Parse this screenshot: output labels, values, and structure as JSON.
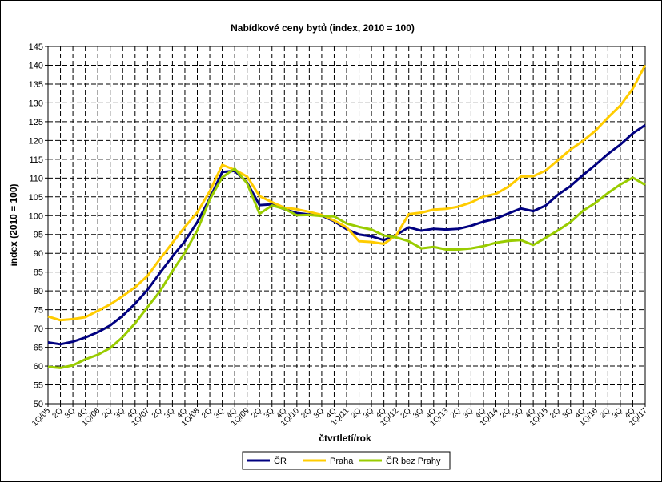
{
  "chart_data": {
    "type": "line",
    "title": "Nabídkové ceny bytů (index, 2010 = 100)",
    "xlabel": "čtvrtletí/rok",
    "ylabel": "index (2010 = 100)",
    "ylim": [
      50,
      145
    ],
    "ystep": 5,
    "grid": true,
    "legend_position": "bottom-center",
    "categories": [
      "1Q/05",
      "2Q",
      "3Q",
      "4Q",
      "1Q/06",
      "2Q",
      "3Q",
      "4Q",
      "1Q/07",
      "2Q",
      "3Q",
      "4Q",
      "1Q/08",
      "2Q",
      "3Q",
      "4Q",
      "1Q/09",
      "2Q",
      "3Q",
      "4Q",
      "1Q/10",
      "2Q",
      "3Q",
      "4Q",
      "1Q/11",
      "2Q",
      "3Q",
      "4Q",
      "1Q/12",
      "2Q",
      "3Q",
      "4Q",
      "1Q/13",
      "2Q",
      "3Q",
      "4Q",
      "1Q/14",
      "2Q",
      "3Q",
      "4Q",
      "1Q/15",
      "2Q",
      "3Q",
      "4Q",
      "1Q/16",
      "2Q",
      "3Q",
      "4Q",
      "1Q/17"
    ],
    "series": [
      {
        "name": "ČR",
        "color": "#000080",
        "values": [
          66.3,
          65.8,
          66.5,
          67.6,
          69.0,
          70.8,
          73.4,
          76.6,
          80.3,
          84.8,
          89.2,
          93.2,
          98.3,
          104.6,
          111.6,
          111.9,
          108.8,
          102.8,
          103.0,
          101.7,
          100.7,
          100.3,
          100.0,
          98.5,
          96.4,
          95.0,
          94.5,
          93.5,
          94.9,
          96.9,
          96.0,
          96.5,
          96.3,
          96.5,
          97.3,
          98.4,
          99.2,
          100.6,
          101.9,
          101.2,
          102.7,
          105.6,
          107.9,
          110.8,
          113.5,
          116.4,
          118.9,
          121.9,
          124.1
        ]
      },
      {
        "name": "Praha",
        "color": "#FFCC00",
        "values": [
          73.2,
          72.2,
          72.5,
          73.0,
          74.7,
          76.4,
          78.6,
          81.0,
          84.0,
          88.5,
          92.8,
          97.0,
          100.9,
          106.5,
          113.5,
          112.2,
          110.4,
          105.2,
          103.6,
          102.1,
          101.7,
          101.0,
          100.2,
          98.7,
          96.9,
          93.2,
          93.0,
          92.5,
          94.8,
          100.4,
          100.8,
          101.6,
          101.8,
          102.4,
          103.5,
          105.1,
          105.8,
          107.7,
          110.4,
          110.5,
          112.0,
          114.8,
          117.6,
          119.9,
          122.6,
          126.1,
          129.3,
          133.8,
          140.0
        ]
      },
      {
        "name": "ČR bez Prahy",
        "color": "#99CC00",
        "values": [
          59.8,
          59.5,
          60.2,
          61.8,
          63.0,
          64.8,
          67.7,
          71.4,
          75.7,
          79.9,
          85.3,
          90.2,
          96.1,
          104.3,
          110.2,
          112.5,
          108.6,
          100.5,
          102.7,
          101.8,
          100.1,
          100.2,
          99.9,
          99.8,
          97.9,
          97.0,
          96.3,
          94.7,
          94.2,
          93.2,
          91.3,
          91.7,
          91.0,
          91.0,
          91.3,
          91.9,
          92.8,
          93.3,
          93.5,
          92.2,
          94.1,
          96.1,
          98.3,
          101.3,
          103.4,
          106.0,
          108.3,
          110.1,
          108.2
        ]
      }
    ]
  }
}
